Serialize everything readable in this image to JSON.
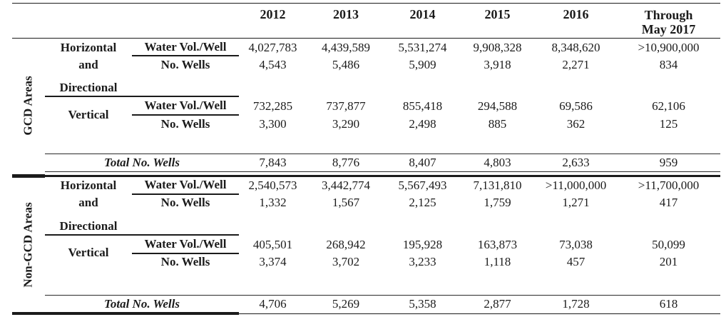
{
  "ink_color": "#1b1b1b",
  "background_color": "#ffffff",
  "header": {
    "years": [
      "2012",
      "2013",
      "2014",
      "2015",
      "2016"
    ],
    "through_line1": "Through",
    "through_line2": "May 2017"
  },
  "labels": {
    "horizontal_line1": "Horizontal",
    "horizontal_line2": "and",
    "directional": "Directional",
    "vertical": "Vertical",
    "water_vol": "Water Vol./Well",
    "no_wells": "No. Wells",
    "total": "Total No. Wells"
  },
  "sections": [
    {
      "name": "GCD Areas",
      "horizontal": {
        "water_vol": [
          "4,027,783",
          "4,439,589",
          "5,531,274",
          "9,908,328",
          "8,348,620",
          ">10,900,000"
        ],
        "no_wells": [
          "4,543",
          "5,486",
          "5,909",
          "3,918",
          "2,271",
          "834"
        ]
      },
      "vertical": {
        "water_vol": [
          "732,285",
          "737,877",
          "855,418",
          "294,588",
          "69,586",
          "62,106"
        ],
        "no_wells": [
          "3,300",
          "3,290",
          "2,498",
          "885",
          "362",
          "125"
        ]
      },
      "total_no_wells": [
        "7,843",
        "8,776",
        "8,407",
        "4,803",
        "2,633",
        "959"
      ]
    },
    {
      "name": "Non-GCD Areas",
      "horizontal": {
        "water_vol": [
          "2,540,573",
          "3,442,774",
          "5,567,493",
          "7,131,810",
          ">11,000,000",
          ">11,700,000"
        ],
        "no_wells": [
          "1,332",
          "1,567",
          "2,125",
          "1,759",
          "1,271",
          "417"
        ]
      },
      "vertical": {
        "water_vol": [
          "405,501",
          "268,942",
          "195,928",
          "163,873",
          "73,038",
          "50,099"
        ],
        "no_wells": [
          "3,374",
          "3,702",
          "3,233",
          "1,118",
          "457",
          "201"
        ]
      },
      "total_no_wells": [
        "4,706",
        "5,269",
        "5,358",
        "2,877",
        "1,728",
        "618"
      ]
    }
  ]
}
